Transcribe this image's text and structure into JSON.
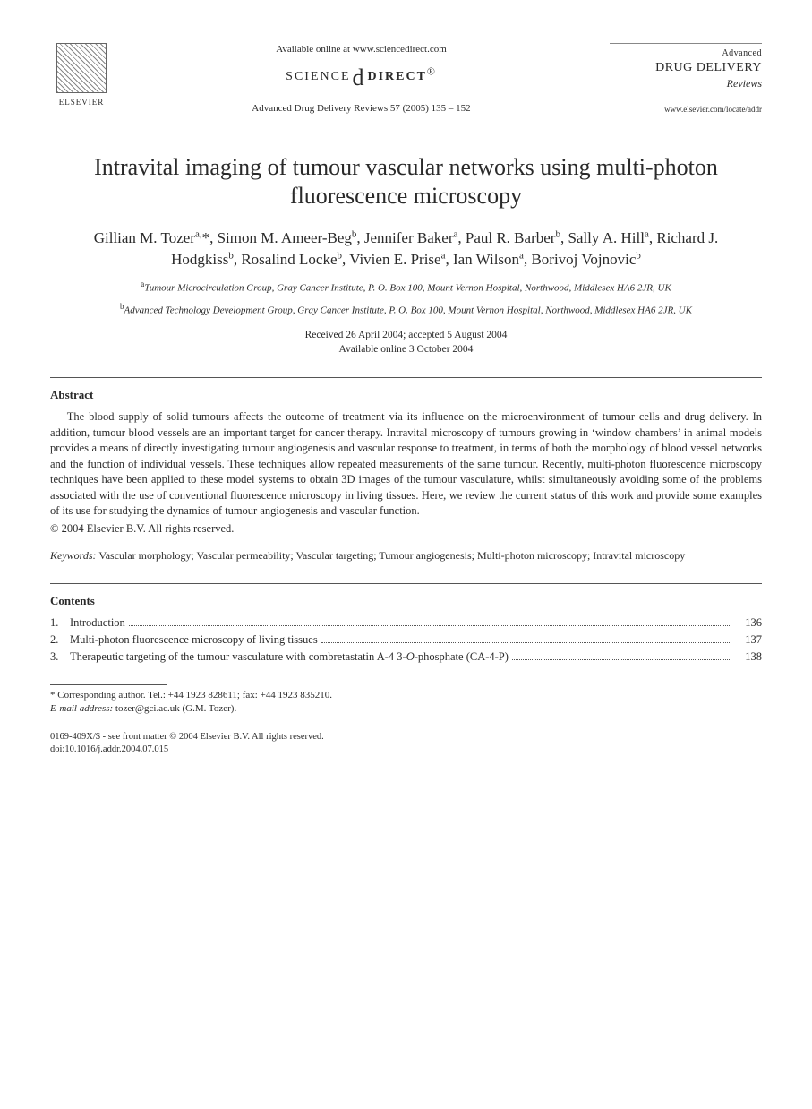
{
  "header": {
    "publisher": "ELSEVIER",
    "available_line": "Available online at www.sciencedirect.com",
    "sd_left": "SCIENCE",
    "sd_right": "DIRECT",
    "sd_mark": "®",
    "journal_ref": "Advanced Drug Delivery Reviews 57 (2005) 135 – 152",
    "journal_name_1": "Advanced",
    "journal_name_2": "DRUG DELIVERY",
    "journal_name_3": "Reviews",
    "journal_url": "www.elsevier.com/locate/addr"
  },
  "title": "Intravital imaging of tumour vascular networks using multi-photon fluorescence microscopy",
  "authors_html": "Gillian M. Tozer<sup>a,</sup>*, Simon M. Ameer-Beg<sup>b</sup>, Jennifer Baker<sup>a</sup>, Paul R. Barber<sup>b</sup>, Sally A. Hill<sup>a</sup>, Richard J. Hodgkiss<sup>b</sup>, Rosalind Locke<sup>b</sup>, Vivien E. Prise<sup>a</sup>, Ian Wilson<sup>a</sup>, Borivoj Vojnovic<sup>b</sup>",
  "affiliations": {
    "a": "Tumour Microcirculation Group, Gray Cancer Institute, P. O. Box 100, Mount Vernon Hospital, Northwood, Middlesex HA6 2JR, UK",
    "b": "Advanced Technology Development Group, Gray Cancer Institute, P. O. Box 100, Mount Vernon Hospital, Northwood, Middlesex HA6 2JR, UK"
  },
  "dates": {
    "received_accepted": "Received 26 April 2004; accepted 5 August 2004",
    "online": "Available online 3 October 2004"
  },
  "abstract": {
    "heading": "Abstract",
    "body": "The blood supply of solid tumours affects the outcome of treatment via its influence on the microenvironment of tumour cells and drug delivery. In addition, tumour blood vessels are an important target for cancer therapy. Intravital microscopy of tumours growing in ‘window chambers’ in animal models provides a means of directly investigating tumour angiogenesis and vascular response to treatment, in terms of both the morphology of blood vessel networks and the function of individual vessels. These techniques allow repeated measurements of the same tumour. Recently, multi-photon fluorescence microscopy techniques have been applied to these model systems to obtain 3D images of the tumour vasculature, whilst simultaneously avoiding some of the problems associated with the use of conventional fluorescence microscopy in living tissues. Here, we review the current status of this work and provide some examples of its use for studying the dynamics of tumour angiogenesis and vascular function.",
    "copyright": "© 2004 Elsevier B.V. All rights reserved."
  },
  "keywords": {
    "label": "Keywords:",
    "text": "Vascular morphology; Vascular permeability; Vascular targeting; Tumour angiogenesis; Multi-photon microscopy; Intravital microscopy"
  },
  "contents": {
    "heading": "Contents",
    "items": [
      {
        "num": "1.",
        "title": "Introduction",
        "page": "136"
      },
      {
        "num": "2.",
        "title": "Multi-photon fluorescence microscopy of living tissues",
        "page": "137"
      },
      {
        "num": "3.",
        "title": "Therapeutic targeting of the tumour vasculature with combretastatin A-4 3-O-phosphate (CA-4-P)",
        "page": "138"
      }
    ]
  },
  "footnotes": {
    "corr": "* Corresponding author. Tel.: +44 1923 828611; fax: +44 1923 835210.",
    "email_label": "E-mail address:",
    "email": "tozer@gci.ac.uk (G.M. Tozer)."
  },
  "bottom": {
    "line1": "0169-409X/$ - see front matter © 2004 Elsevier B.V. All rights reserved.",
    "line2": "doi:10.1016/j.addr.2004.07.015"
  }
}
